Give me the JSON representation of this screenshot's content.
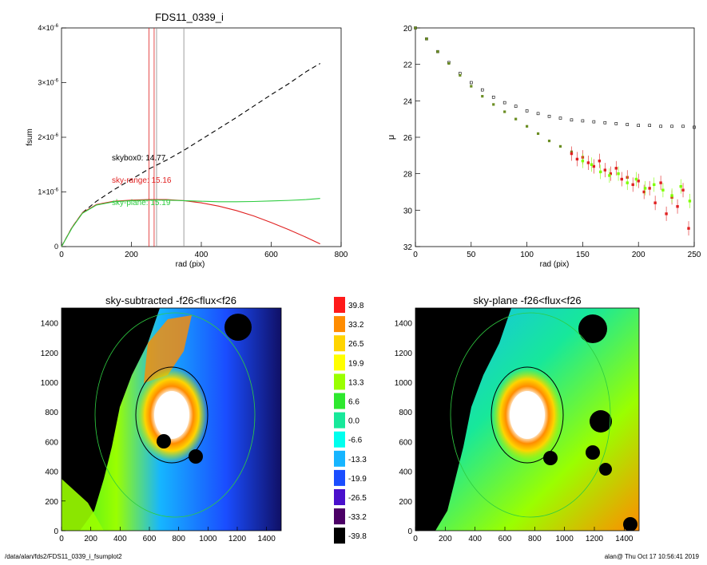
{
  "footer": {
    "path": "/data/alan/fds2/FDS11_0339_i_fsumplot2",
    "user_time": "alan@  Thu Oct 17 10:56:41 2019"
  },
  "chart_data": [
    {
      "type": "line",
      "title": "FDS11_0339_i",
      "xlabel": "rad (pix)",
      "ylabel": "fsum",
      "xlim": [
        0,
        800
      ],
      "ylim": [
        0,
        4e-06
      ],
      "xticks": [
        "0",
        "200",
        "400",
        "600",
        "800"
      ],
      "yticks": [
        "0",
        "1×10",
        "2×10",
        "3×10",
        "4×10"
      ],
      "ytick_exp": "-6",
      "vlines": [
        {
          "x": 250,
          "color": "#e02020"
        },
        {
          "x": 265,
          "color": "#e02020"
        },
        {
          "x": 272,
          "color": "#888888"
        },
        {
          "x": 350,
          "color": "#888888"
        }
      ],
      "annotations": [
        {
          "text": "skybox0: 14.77",
          "color": "#000000"
        },
        {
          "text": "sky-range: 15.16",
          "color": "#e02020"
        },
        {
          "text": "sky-plane: 15.19",
          "color": "#2ecc40"
        }
      ],
      "series": [
        {
          "style": "dashed",
          "color": "#000000",
          "x": [
            0,
            30,
            60,
            100,
            150,
            200,
            250,
            300,
            350,
            400,
            450,
            500,
            550,
            600,
            650,
            700,
            740
          ],
          "y": [
            0,
            3.5e-07,
            6.2e-07,
            8.3e-07,
            1.04e-06,
            1.23e-06,
            1.42e-06,
            1.58e-06,
            1.76e-06,
            1.96e-06,
            2.16e-06,
            2.36e-06,
            2.57e-06,
            2.78e-06,
            2.98e-06,
            3.2e-06,
            3.35e-06
          ]
        },
        {
          "style": "solid",
          "color": "#e02020",
          "x": [
            0,
            30,
            60,
            100,
            150,
            200,
            250,
            300,
            350,
            400,
            450,
            500,
            550,
            600,
            650,
            700,
            740
          ],
          "y": [
            0,
            3.5e-07,
            6.2e-07,
            7.7e-07,
            8.3e-07,
            8.5e-07,
            8.6e-07,
            8.6e-07,
            8.4e-07,
            8e-07,
            7.4e-07,
            6.6e-07,
            5.6e-07,
            4.4e-07,
            3.1e-07,
            1.7e-07,
            5e-08
          ]
        },
        {
          "style": "solid",
          "color": "#2ecc40",
          "x": [
            0,
            30,
            60,
            100,
            150,
            200,
            250,
            300,
            350,
            400,
            450,
            500,
            550,
            600,
            650,
            700,
            740
          ],
          "y": [
            0,
            3.4e-07,
            6.1e-07,
            7.6e-07,
            8.2e-07,
            8.4e-07,
            8.5e-07,
            8.5e-07,
            8.4e-07,
            8.3e-07,
            8.2e-07,
            8.2e-07,
            8.25e-07,
            8.35e-07,
            8.45e-07,
            8.6e-07,
            8.8e-07
          ]
        }
      ]
    },
    {
      "type": "scatter",
      "xlabel": "rad (pix)",
      "ylabel": "μ",
      "xlim": [
        0,
        250
      ],
      "ylim": [
        32,
        20
      ],
      "xticks": [
        "0",
        "50",
        "100",
        "150",
        "200",
        "250"
      ],
      "yticks": [
        "20",
        "22",
        "24",
        "26",
        "28",
        "30",
        "32"
      ],
      "series": [
        {
          "marker": "open-square",
          "color": "#000000",
          "x": [
            0,
            10,
            20,
            30,
            40,
            50,
            60,
            70,
            80,
            90,
            100,
            110,
            120,
            130,
            140,
            150,
            160,
            170,
            180,
            190,
            200,
            210,
            220,
            230,
            240,
            250
          ],
          "y": [
            20.0,
            20.6,
            21.3,
            21.9,
            22.5,
            23.0,
            23.4,
            23.8,
            24.1,
            24.3,
            24.55,
            24.7,
            24.85,
            24.95,
            25.05,
            25.1,
            25.15,
            25.2,
            25.25,
            25.3,
            25.35,
            25.35,
            25.4,
            25.4,
            25.4,
            25.45
          ]
        },
        {
          "marker": "filled-square",
          "color": "#6b8e23",
          "x": [
            0,
            10,
            20,
            30,
            40,
            50,
            60,
            70,
            80,
            90,
            100,
            110,
            120,
            130,
            140
          ],
          "y": [
            20.0,
            20.6,
            21.3,
            21.95,
            22.6,
            23.2,
            23.75,
            24.2,
            24.6,
            25.0,
            25.4,
            25.8,
            26.2,
            26.5,
            26.8
          ]
        },
        {
          "marker": "dot",
          "color": "#e02020",
          "x": [
            140,
            145,
            150,
            155,
            160,
            165,
            170,
            175,
            180,
            185,
            190,
            195,
            200,
            205,
            210,
            215,
            220,
            225,
            230,
            235,
            240,
            245
          ],
          "y": [
            26.9,
            27.2,
            27.1,
            27.4,
            27.6,
            27.3,
            27.8,
            28.0,
            27.7,
            28.3,
            28.2,
            28.6,
            28.4,
            29.0,
            28.8,
            29.6,
            28.5,
            30.2,
            29.3,
            29.8,
            28.9,
            31.0
          ]
        },
        {
          "marker": "dot",
          "color": "#7fff00",
          "x": [
            150,
            158,
            166,
            174,
            182,
            190,
            198,
            206,
            214,
            222,
            230,
            238,
            246
          ],
          "y": [
            27.3,
            27.5,
            27.9,
            28.1,
            28.0,
            28.5,
            28.3,
            28.8,
            28.6,
            28.9,
            29.2,
            28.7,
            29.5
          ]
        }
      ]
    },
    {
      "type": "heatmap",
      "title": "sky-subtracted -f26<flux<f26",
      "xlim": [
        0,
        1500
      ],
      "ylim": [
        0,
        1500
      ],
      "xticks": [
        "0",
        "200",
        "400",
        "600",
        "800",
        "1000",
        "1200",
        "1400"
      ],
      "yticks": [
        "0",
        "200",
        "400",
        "600",
        "800",
        "1000",
        "1200",
        "1400"
      ],
      "bright_center": [
        750,
        750
      ]
    },
    {
      "type": "heatmap",
      "title": "sky-plane -f26<flux<f26",
      "xlim": [
        0,
        1500
      ],
      "ylim": [
        0,
        1500
      ],
      "xticks": [
        "0",
        "200",
        "400",
        "600",
        "800",
        "1000",
        "1200",
        "1400"
      ],
      "yticks": [
        "0",
        "200",
        "400",
        "600",
        "800",
        "1000",
        "1200",
        "1400"
      ],
      "bright_center": [
        750,
        750
      ]
    }
  ],
  "colorbar": {
    "labels": [
      "39.8",
      "33.2",
      "26.5",
      "19.9",
      "13.3",
      "6.6",
      "0.0",
      "-6.6",
      "-13.3",
      "-19.9",
      "-26.5",
      "-33.2",
      "-39.8"
    ],
    "colors": [
      "#ff1a1a",
      "#ff8c00",
      "#ffd400",
      "#ffff00",
      "#9aff00",
      "#2ee82e",
      "#17e89a",
      "#00ffee",
      "#16b5ff",
      "#1a4dff",
      "#4a10cc",
      "#4b0066",
      "#000000"
    ]
  }
}
